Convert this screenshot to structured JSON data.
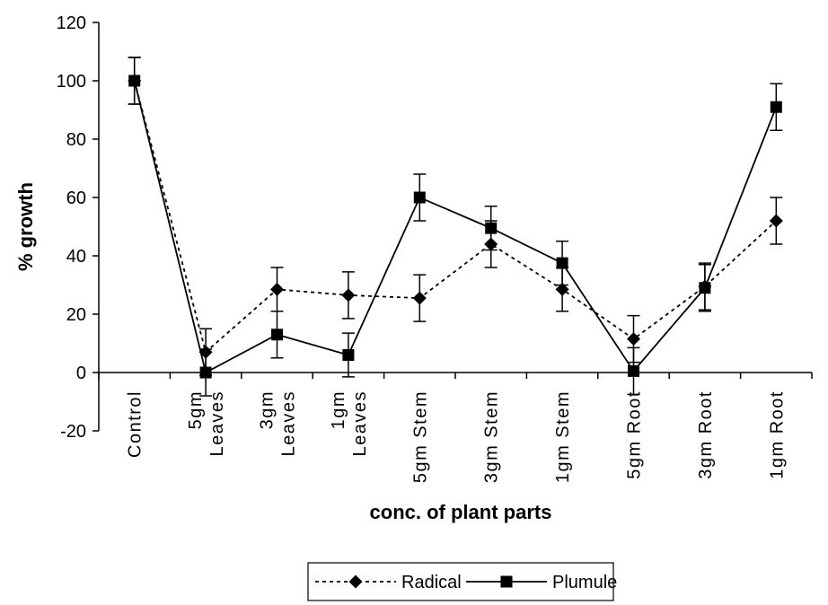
{
  "chart_data": {
    "type": "line",
    "categories": [
      [
        "Control"
      ],
      [
        "5gm",
        "Leaves"
      ],
      [
        "3gm",
        "Leaves"
      ],
      [
        "1gm",
        "Leaves"
      ],
      [
        "5gm Stem"
      ],
      [
        "3gm Stem"
      ],
      [
        "1gm Stem"
      ],
      [
        "5gm Root"
      ],
      [
        "3gm Root"
      ],
      [
        "1gm Root"
      ]
    ],
    "series": [
      {
        "name": "Radical",
        "marker": "diamond",
        "line": "dotted",
        "values": [
          100,
          7,
          28.5,
          26.5,
          25.5,
          44,
          28.5,
          11.5,
          29.5,
          52
        ],
        "error": [
          8,
          8,
          7.5,
          8,
          8,
          8,
          7.5,
          8,
          8,
          8
        ]
      },
      {
        "name": "Plumule",
        "marker": "square",
        "line": "solid",
        "values": [
          100,
          0,
          13,
          6,
          60,
          49.5,
          37.5,
          0.5,
          29,
          91
        ],
        "error": [
          8,
          8,
          8,
          7.5,
          8,
          7.5,
          7.5,
          8,
          8,
          8
        ]
      }
    ],
    "xlabel": "conc. of plant parts",
    "ylabel": "% growth",
    "ylim": [
      -20,
      120
    ],
    "yticks": [
      -20,
      0,
      20,
      40,
      60,
      80,
      100,
      120
    ],
    "grid": false,
    "legend": "bottom-center",
    "colors": {
      "line": "#000000",
      "background": "#ffffff"
    }
  }
}
